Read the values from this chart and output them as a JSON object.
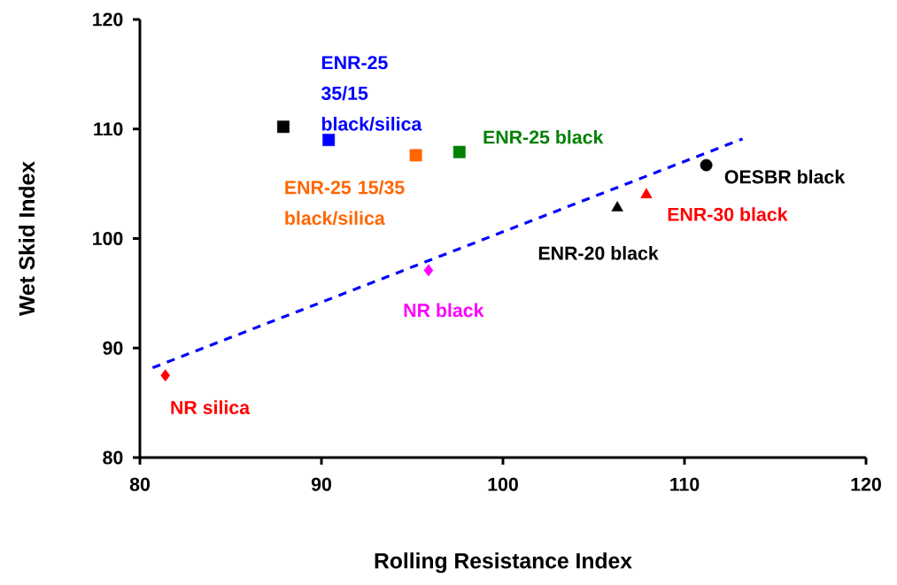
{
  "chart_data": {
    "type": "scatter",
    "xlabel": "Rolling Resistance Index",
    "ylabel": "Wet Skid Index",
    "xlim": [
      80,
      120
    ],
    "ylim": [
      80,
      120
    ],
    "xticks": [
      80,
      90,
      100,
      110,
      120
    ],
    "yticks": [
      80,
      90,
      100,
      110,
      120
    ],
    "series": [
      {
        "name": "NR silica",
        "color": "#ff0000",
        "marker": "diamond",
        "x": [
          81.4
        ],
        "values": [
          87.5
        ]
      },
      {
        "name": "NR black",
        "color": "#ff00ff",
        "marker": "diamond",
        "x": [
          95.9
        ],
        "values": [
          97.1
        ]
      },
      {
        "color": "#000000",
        "marker": "square",
        "x": [
          87.9
        ],
        "values": [
          110.2
        ]
      },
      {
        "name": "ENR-25 35/15 black/silica",
        "color": "#0000ff",
        "marker": "square",
        "x": [
          90.4
        ],
        "values": [
          109.0
        ]
      },
      {
        "name": "ENR-25 15/35 black/silica",
        "color": "#ff6600",
        "marker": "square",
        "x": [
          95.2
        ],
        "values": [
          107.6
        ]
      },
      {
        "name": "ENR-25 black",
        "color": "#008000",
        "marker": "square",
        "x": [
          97.6
        ],
        "values": [
          107.9
        ]
      },
      {
        "name": "ENR-20 black",
        "color": "#000000",
        "marker": "triangle",
        "x": [
          106.3
        ],
        "values": [
          102.8
        ]
      },
      {
        "name": "ENR-30 black",
        "color": "#ff0000",
        "marker": "triangle",
        "x": [
          107.9
        ],
        "values": [
          104.0
        ]
      },
      {
        "name": "OESBR black",
        "color": "#000000",
        "marker": "circle",
        "x": [
          111.2
        ],
        "values": [
          106.7
        ]
      },
      {
        "type": "line",
        "color": "#0000ff",
        "line_style": "dashed",
        "marker": "none",
        "x": [
          80.7,
          113.2
        ],
        "values": [
          88.2,
          109.1
        ]
      }
    ]
  }
}
